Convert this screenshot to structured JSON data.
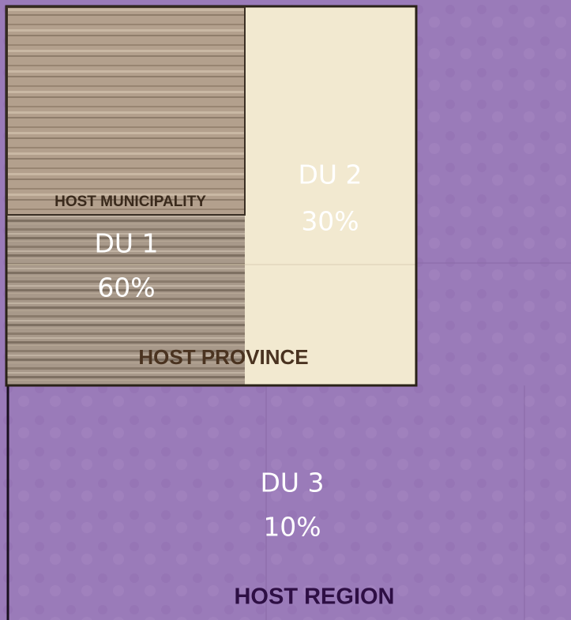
{
  "region": {
    "label": "HOST REGION",
    "du": "DU 3",
    "share": "10%"
  },
  "province": {
    "label": "HOST PROVINCE"
  },
  "municipality": {
    "label": "HOST MUNICIPALITY"
  },
  "du1": {
    "du": "DU 1",
    "share": "60%"
  },
  "du2": {
    "du": "DU 2",
    "share": "30%"
  }
}
